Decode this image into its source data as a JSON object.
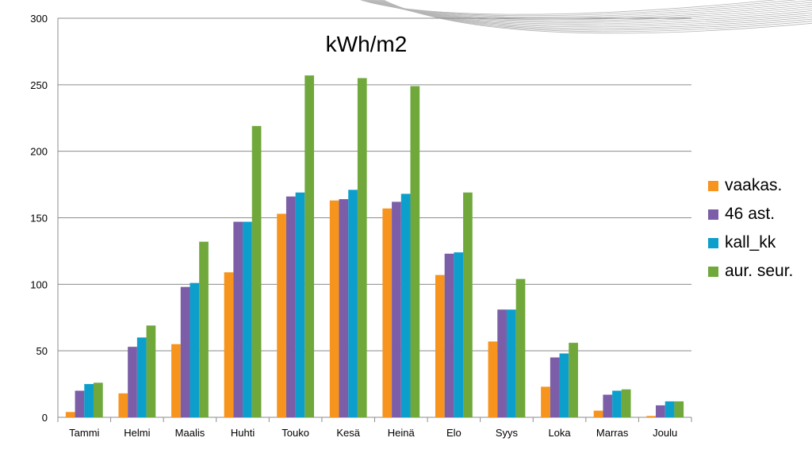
{
  "chart_data": {
    "type": "bar",
    "title": "kWh/m2",
    "xlabel": "",
    "ylabel": "",
    "ylim": [
      0,
      300
    ],
    "yticks": [
      0,
      50,
      100,
      150,
      200,
      250,
      300
    ],
    "grid": true,
    "legend_position": "right",
    "categories": [
      "Tammi",
      "Helmi",
      "Maalis",
      "Huhti",
      "Touko",
      "Kesä",
      "Heinä",
      "Elo",
      "Syys",
      "Loka",
      "Marras",
      "Joulu"
    ],
    "series": [
      {
        "name": "vaakas.",
        "color": "#f7941d",
        "values": [
          4,
          18,
          55,
          109,
          153,
          163,
          157,
          107,
          57,
          23,
          5,
          1
        ]
      },
      {
        "name": "46 ast.",
        "color": "#7b5ea7",
        "values": [
          20,
          53,
          98,
          147,
          166,
          164,
          162,
          123,
          81,
          45,
          17,
          9
        ]
      },
      {
        "name": "kall_kk",
        "color": "#0d9fcc",
        "values": [
          25,
          60,
          101,
          147,
          169,
          171,
          168,
          124,
          81,
          48,
          20,
          12
        ]
      },
      {
        "name": "aur. seur.",
        "color": "#70a83b",
        "values": [
          26,
          69,
          132,
          219,
          257,
          255,
          249,
          169,
          104,
          56,
          21,
          12
        ]
      }
    ]
  }
}
